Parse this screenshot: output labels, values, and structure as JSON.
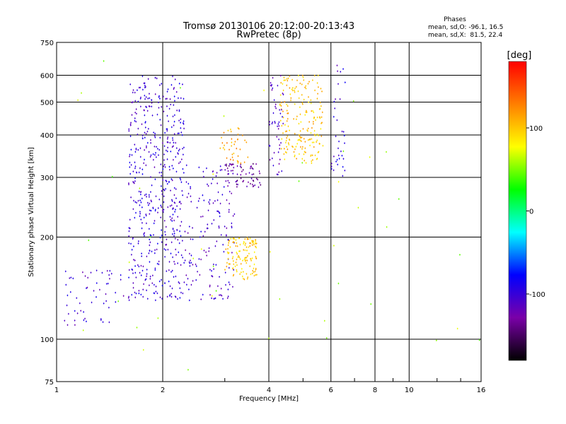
{
  "chart_data": {
    "type": "scatter",
    "title": "Tromsø 20130106 20:12:00-20:13:43",
    "subtitle": "RwPretec (8p)",
    "xlabel": "Frequency [MHz]",
    "ylabel": "Stationary phase Virtual Height [km]",
    "x_scale": "log",
    "y_scale": "log",
    "xlim": [
      1,
      16
    ],
    "ylim": [
      75,
      750
    ],
    "x_ticks": [
      1,
      2,
      4,
      6,
      8,
      10,
      16
    ],
    "y_ticks": [
      75,
      100,
      200,
      300,
      400,
      500,
      600,
      750
    ],
    "grid": true,
    "phase_stats": {
      "heading": "Phases",
      "line_o": "mean, sd,O: -96.1, 16.5",
      "line_x": "mean, sd,X:  81.5, 22.4"
    },
    "colorbar": {
      "label": "[deg]",
      "range": [
        -180,
        180
      ],
      "ticks": [
        100,
        0,
        -100
      ],
      "colors": [
        "#000000",
        "#7a00a8",
        "#0000ff",
        "#00ffff",
        "#00ff00",
        "#ffff00",
        "#ff7f00",
        "#ff0000"
      ]
    },
    "series": [
      {
        "description_marks": "clusters of echoes; each cluster summarizes many points",
        "clusters": [
          {
            "x_range": [
              1.6,
              2.3
            ],
            "y_range": [
              130,
              600
            ],
            "phase": -100,
            "points": 520
          },
          {
            "x_range": [
              2.3,
              3.2
            ],
            "y_range": [
              130,
              330
            ],
            "phase": -105,
            "points": 160
          },
          {
            "x_range": [
              1.05,
              1.55
            ],
            "y_range": [
              110,
              160
            ],
            "phase": -105,
            "points": 55
          },
          {
            "x_range": [
              3.0,
              3.8
            ],
            "y_range": [
              280,
              330
            ],
            "phase": -130,
            "points": 60
          },
          {
            "x_range": [
              3.0,
              3.7
            ],
            "y_range": [
              150,
              200
            ],
            "phase": 100,
            "points": 130
          },
          {
            "x_range": [
              2.9,
              3.5
            ],
            "y_range": [
              330,
              420
            ],
            "phase": 115,
            "points": 40
          },
          {
            "x_range": [
              4.3,
              5.7
            ],
            "y_range": [
              330,
              600
            ],
            "phase": 100,
            "points": 200
          },
          {
            "x_range": [
              4.0,
              4.4
            ],
            "y_range": [
              300,
              600
            ],
            "phase": -110,
            "points": 50
          },
          {
            "x_range": [
              6.0,
              6.6
            ],
            "y_range": [
              300,
              650
            ],
            "phase": -100,
            "points": 35
          },
          {
            "x_range": [
              1.0,
              16.0
            ],
            "y_range": [
              80,
              700
            ],
            "phase": 60,
            "points": 45
          }
        ]
      }
    ]
  }
}
